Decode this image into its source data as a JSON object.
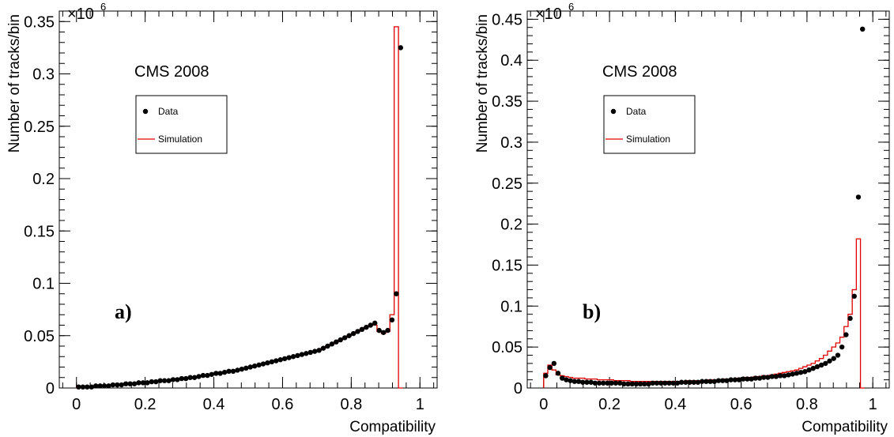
{
  "chart_data": [
    {
      "type": "line",
      "panel_label": "a)",
      "annotation": "CMS 2008",
      "xlabel": "Compatibility",
      "ylabel": "Number of tracks/bin",
      "y_exponent_label": "×10",
      "y_exponent": "6",
      "xlim": [
        -0.05,
        1.05
      ],
      "ylim": [
        0,
        0.36
      ],
      "x_ticks": [
        "0",
        "0.2",
        "0.4",
        "0.6",
        "0.8",
        "1"
      ],
      "y_ticks": [
        "0",
        "0.05",
        "0.1",
        "0.15",
        "0.2",
        "0.25",
        "0.3",
        "0.35"
      ],
      "grid": false,
      "legend_position": "upper-left",
      "legend": [
        "Data",
        "Simulation"
      ],
      "colors": {
        "data": "#000000",
        "simulation": "#e00000"
      },
      "bin_width": 0.0125,
      "bin_start": 0.0,
      "data": [
        0.001,
        0.001,
        0.001,
        0.001,
        0.002,
        0.002,
        0.002,
        0.002,
        0.003,
        0.003,
        0.003,
        0.004,
        0.004,
        0.004,
        0.005,
        0.005,
        0.005,
        0.006,
        0.006,
        0.007,
        0.007,
        0.007,
        0.008,
        0.008,
        0.009,
        0.009,
        0.01,
        0.01,
        0.011,
        0.012,
        0.012,
        0.013,
        0.014,
        0.014,
        0.015,
        0.016,
        0.016,
        0.017,
        0.018,
        0.019,
        0.02,
        0.021,
        0.022,
        0.023,
        0.024,
        0.025,
        0.026,
        0.027,
        0.028,
        0.029,
        0.03,
        0.031,
        0.032,
        0.033,
        0.034,
        0.035,
        0.036,
        0.038,
        0.04,
        0.042,
        0.044,
        0.046,
        0.048,
        0.05,
        0.052,
        0.054,
        0.056,
        0.058,
        0.06,
        0.062,
        0.055,
        0.053,
        0.055,
        0.065,
        0.09,
        0.325
      ],
      "simulation": [
        0.001,
        0.001,
        0.001,
        0.001,
        0.002,
        0.002,
        0.002,
        0.002,
        0.003,
        0.003,
        0.003,
        0.004,
        0.004,
        0.004,
        0.005,
        0.005,
        0.005,
        0.006,
        0.006,
        0.007,
        0.007,
        0.007,
        0.008,
        0.008,
        0.009,
        0.009,
        0.01,
        0.01,
        0.011,
        0.012,
        0.012,
        0.013,
        0.014,
        0.014,
        0.015,
        0.016,
        0.016,
        0.017,
        0.018,
        0.019,
        0.02,
        0.021,
        0.022,
        0.023,
        0.024,
        0.025,
        0.026,
        0.027,
        0.028,
        0.029,
        0.03,
        0.031,
        0.032,
        0.033,
        0.034,
        0.035,
        0.036,
        0.038,
        0.04,
        0.042,
        0.044,
        0.046,
        0.048,
        0.05,
        0.052,
        0.054,
        0.056,
        0.058,
        0.06,
        0.06,
        0.054,
        0.052,
        0.054,
        0.07,
        0.345,
        0.0
      ]
    },
    {
      "type": "line",
      "panel_label": "b)",
      "annotation": "CMS 2008",
      "xlabel": "Compatibility",
      "ylabel": "Number of tracks/bin",
      "y_exponent_label": "×10",
      "y_exponent": "6",
      "xlim": [
        -0.05,
        1.05
      ],
      "ylim": [
        0,
        0.46
      ],
      "x_ticks": [
        "0",
        "0.2",
        "0.4",
        "0.6",
        "0.8",
        "1"
      ],
      "y_ticks": [
        "0",
        "0.05",
        "0.1",
        "0.15",
        "0.2",
        "0.25",
        "0.3",
        "0.35",
        "0.4",
        "0.45"
      ],
      "grid": false,
      "legend_position": "upper-left",
      "legend": [
        "Data",
        "Simulation"
      ],
      "colors": {
        "data": "#000000",
        "simulation": "#e00000"
      },
      "bin_width": 0.0125,
      "bin_start": 0.0,
      "data": [
        0.015,
        0.025,
        0.03,
        0.018,
        0.012,
        0.01,
        0.009,
        0.008,
        0.008,
        0.007,
        0.007,
        0.007,
        0.006,
        0.006,
        0.006,
        0.006,
        0.006,
        0.006,
        0.006,
        0.005,
        0.005,
        0.005,
        0.005,
        0.005,
        0.005,
        0.005,
        0.006,
        0.006,
        0.006,
        0.006,
        0.006,
        0.006,
        0.006,
        0.007,
        0.007,
        0.007,
        0.007,
        0.007,
        0.008,
        0.008,
        0.008,
        0.008,
        0.009,
        0.009,
        0.009,
        0.01,
        0.01,
        0.01,
        0.011,
        0.011,
        0.011,
        0.012,
        0.012,
        0.013,
        0.013,
        0.014,
        0.014,
        0.015,
        0.015,
        0.016,
        0.017,
        0.018,
        0.019,
        0.02,
        0.022,
        0.024,
        0.026,
        0.028,
        0.03,
        0.033,
        0.036,
        0.04,
        0.05,
        0.065,
        0.085,
        0.112,
        0.233,
        0.438
      ],
      "simulation": [
        0.018,
        0.028,
        0.022,
        0.016,
        0.015,
        0.014,
        0.013,
        0.012,
        0.012,
        0.012,
        0.011,
        0.011,
        0.011,
        0.01,
        0.01,
        0.01,
        0.01,
        0.009,
        0.009,
        0.009,
        0.009,
        0.008,
        0.008,
        0.008,
        0.008,
        0.008,
        0.008,
        0.008,
        0.008,
        0.008,
        0.008,
        0.008,
        0.008,
        0.008,
        0.008,
        0.009,
        0.009,
        0.009,
        0.009,
        0.009,
        0.01,
        0.01,
        0.01,
        0.01,
        0.011,
        0.011,
        0.011,
        0.012,
        0.012,
        0.013,
        0.013,
        0.014,
        0.014,
        0.015,
        0.015,
        0.016,
        0.017,
        0.018,
        0.019,
        0.02,
        0.021,
        0.022,
        0.024,
        0.026,
        0.028,
        0.03,
        0.033,
        0.036,
        0.04,
        0.045,
        0.05,
        0.055,
        0.062,
        0.075,
        0.09,
        0.12,
        0.182,
        0.0
      ]
    }
  ]
}
